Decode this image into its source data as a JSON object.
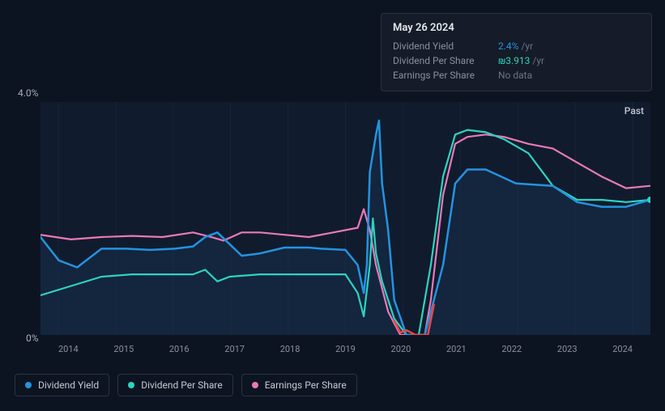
{
  "tooltip": {
    "date": "May 26 2024",
    "rows": [
      {
        "label": "Dividend Yield",
        "value": "2.4%",
        "unit": "/yr",
        "color": "blue"
      },
      {
        "label": "Dividend Per Share",
        "value": "₪3.913",
        "unit": "/yr",
        "color": "teal"
      },
      {
        "label": "Earnings Per Share",
        "value": "No data",
        "unit": "",
        "color": "gray"
      }
    ]
  },
  "chart": {
    "y_max_label": "4.0%",
    "y_min_label": "0%",
    "past_label": "Past",
    "x_labels": [
      "2014",
      "2015",
      "2016",
      "2017",
      "2018",
      "2019",
      "2020",
      "2021",
      "2022",
      "2023",
      "2024"
    ],
    "background_color": "#0d1421",
    "plot_background": "#111b2e",
    "grid_color": "#1a2438",
    "series": {
      "dividend_yield": {
        "color": "#2394df",
        "fill": "#1a3a5c",
        "fill_opacity": 0.35,
        "points": [
          [
            0.0,
            0.58
          ],
          [
            0.03,
            0.68
          ],
          [
            0.06,
            0.71
          ],
          [
            0.1,
            0.63
          ],
          [
            0.14,
            0.63
          ],
          [
            0.18,
            0.635
          ],
          [
            0.22,
            0.63
          ],
          [
            0.25,
            0.62
          ],
          [
            0.27,
            0.58
          ],
          [
            0.29,
            0.56
          ],
          [
            0.31,
            0.61
          ],
          [
            0.33,
            0.66
          ],
          [
            0.36,
            0.65
          ],
          [
            0.4,
            0.625
          ],
          [
            0.44,
            0.625
          ],
          [
            0.46,
            0.63
          ],
          [
            0.5,
            0.635
          ],
          [
            0.52,
            0.7
          ],
          [
            0.53,
            0.82
          ],
          [
            0.535,
            0.7
          ],
          [
            0.54,
            0.3
          ],
          [
            0.55,
            0.14
          ],
          [
            0.555,
            0.08
          ],
          [
            0.56,
            0.35
          ],
          [
            0.57,
            0.55
          ],
          [
            0.58,
            0.85
          ],
          [
            0.6,
            1.0
          ],
          [
            0.63,
            1.0
          ],
          [
            0.66,
            0.7
          ],
          [
            0.68,
            0.35
          ],
          [
            0.7,
            0.29
          ],
          [
            0.73,
            0.29
          ],
          [
            0.78,
            0.35
          ],
          [
            0.84,
            0.36
          ],
          [
            0.88,
            0.43
          ],
          [
            0.92,
            0.45
          ],
          [
            0.96,
            0.45
          ],
          [
            1.0,
            0.42
          ]
        ]
      },
      "dividend_per_share": {
        "color": "#2dd4bf",
        "points": [
          [
            0.0,
            0.83
          ],
          [
            0.05,
            0.79
          ],
          [
            0.1,
            0.75
          ],
          [
            0.15,
            0.74
          ],
          [
            0.2,
            0.74
          ],
          [
            0.25,
            0.74
          ],
          [
            0.27,
            0.72
          ],
          [
            0.29,
            0.77
          ],
          [
            0.31,
            0.75
          ],
          [
            0.36,
            0.74
          ],
          [
            0.42,
            0.74
          ],
          [
            0.46,
            0.74
          ],
          [
            0.5,
            0.74
          ],
          [
            0.52,
            0.82
          ],
          [
            0.53,
            0.92
          ],
          [
            0.54,
            0.7
          ],
          [
            0.545,
            0.5
          ],
          [
            0.55,
            0.65
          ],
          [
            0.56,
            0.77
          ],
          [
            0.58,
            0.93
          ],
          [
            0.6,
            1.0
          ],
          [
            0.62,
            1.0
          ],
          [
            0.64,
            0.7
          ],
          [
            0.66,
            0.32
          ],
          [
            0.68,
            0.14
          ],
          [
            0.7,
            0.12
          ],
          [
            0.73,
            0.13
          ],
          [
            0.76,
            0.16
          ],
          [
            0.8,
            0.22
          ],
          [
            0.84,
            0.36
          ],
          [
            0.88,
            0.42
          ],
          [
            0.92,
            0.42
          ],
          [
            0.96,
            0.43
          ],
          [
            1.0,
            0.42
          ]
        ]
      },
      "earnings_per_share": {
        "color": "#e879b9",
        "points": [
          [
            0.0,
            0.57
          ],
          [
            0.05,
            0.59
          ],
          [
            0.1,
            0.58
          ],
          [
            0.15,
            0.575
          ],
          [
            0.2,
            0.58
          ],
          [
            0.25,
            0.56
          ],
          [
            0.28,
            0.58
          ],
          [
            0.3,
            0.595
          ],
          [
            0.33,
            0.56
          ],
          [
            0.36,
            0.56
          ],
          [
            0.4,
            0.57
          ],
          [
            0.44,
            0.58
          ],
          [
            0.48,
            0.56
          ],
          [
            0.52,
            0.54
          ],
          [
            0.53,
            0.46
          ],
          [
            0.54,
            0.55
          ],
          [
            0.55,
            0.7
          ],
          [
            0.57,
            0.9
          ],
          [
            0.59,
            1.0
          ],
          [
            0.61,
            1.0
          ],
          [
            0.63,
            1.0
          ],
          [
            0.64,
            0.85
          ],
          [
            0.66,
            0.4
          ],
          [
            0.68,
            0.18
          ],
          [
            0.7,
            0.15
          ],
          [
            0.73,
            0.14
          ],
          [
            0.76,
            0.15
          ],
          [
            0.8,
            0.18
          ],
          [
            0.84,
            0.2
          ],
          [
            0.88,
            0.26
          ],
          [
            0.92,
            0.32
          ],
          [
            0.96,
            0.37
          ],
          [
            1.0,
            0.36
          ]
        ]
      },
      "red_segment": {
        "color": "#ef4444",
        "points": [
          [
            0.58,
            0.94
          ],
          [
            0.59,
            0.99
          ],
          [
            0.6,
            0.98
          ],
          [
            0.615,
            1.0
          ],
          [
            0.635,
            1.0
          ],
          [
            0.645,
            0.87
          ]
        ]
      }
    }
  },
  "legend": [
    {
      "label": "Dividend Yield",
      "color": "#2394df"
    },
    {
      "label": "Dividend Per Share",
      "color": "#2dd4bf"
    },
    {
      "label": "Earnings Per Share",
      "color": "#e879b9"
    }
  ]
}
